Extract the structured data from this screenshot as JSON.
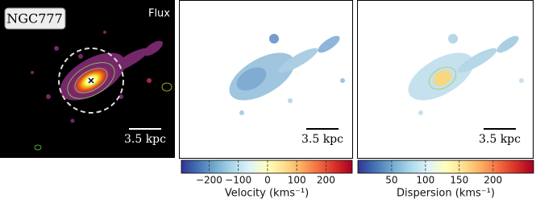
{
  "panels": [
    {
      "label": "NGC777",
      "corner_label": "Flux",
      "scale_bar": "3.5 kpc"
    },
    {
      "scale_bar": "3.5 kpc"
    },
    {
      "scale_bar": "3.5 kpc"
    }
  ],
  "colorbars": [
    {
      "label": "Velocity (kms⁻¹)",
      "lim": [
        -295,
        290
      ],
      "ticks": [
        {
          "value": -200,
          "label": "−200"
        },
        {
          "value": -100,
          "label": "−100"
        },
        0,
        100,
        200
      ],
      "colors": [
        "#313695",
        "#4575b4",
        "#74add1",
        "#abd9e9",
        "#e0f3f8",
        "#ffffbf",
        "#fee090",
        "#fdae61",
        "#f46d43",
        "#d73027",
        "#a50026"
      ]
    },
    {
      "label": "Dispersion (kms⁻¹)",
      "lim": [
        0,
        260
      ],
      "ticks": [
        50,
        100,
        150,
        200
      ],
      "colors": [
        "#313695",
        "#4575b4",
        "#74add1",
        "#abd9e9",
        "#e0f3f8",
        "#ffffbf",
        "#fee090",
        "#fdae61",
        "#f46d43",
        "#d73027",
        "#a50026"
      ]
    }
  ]
}
